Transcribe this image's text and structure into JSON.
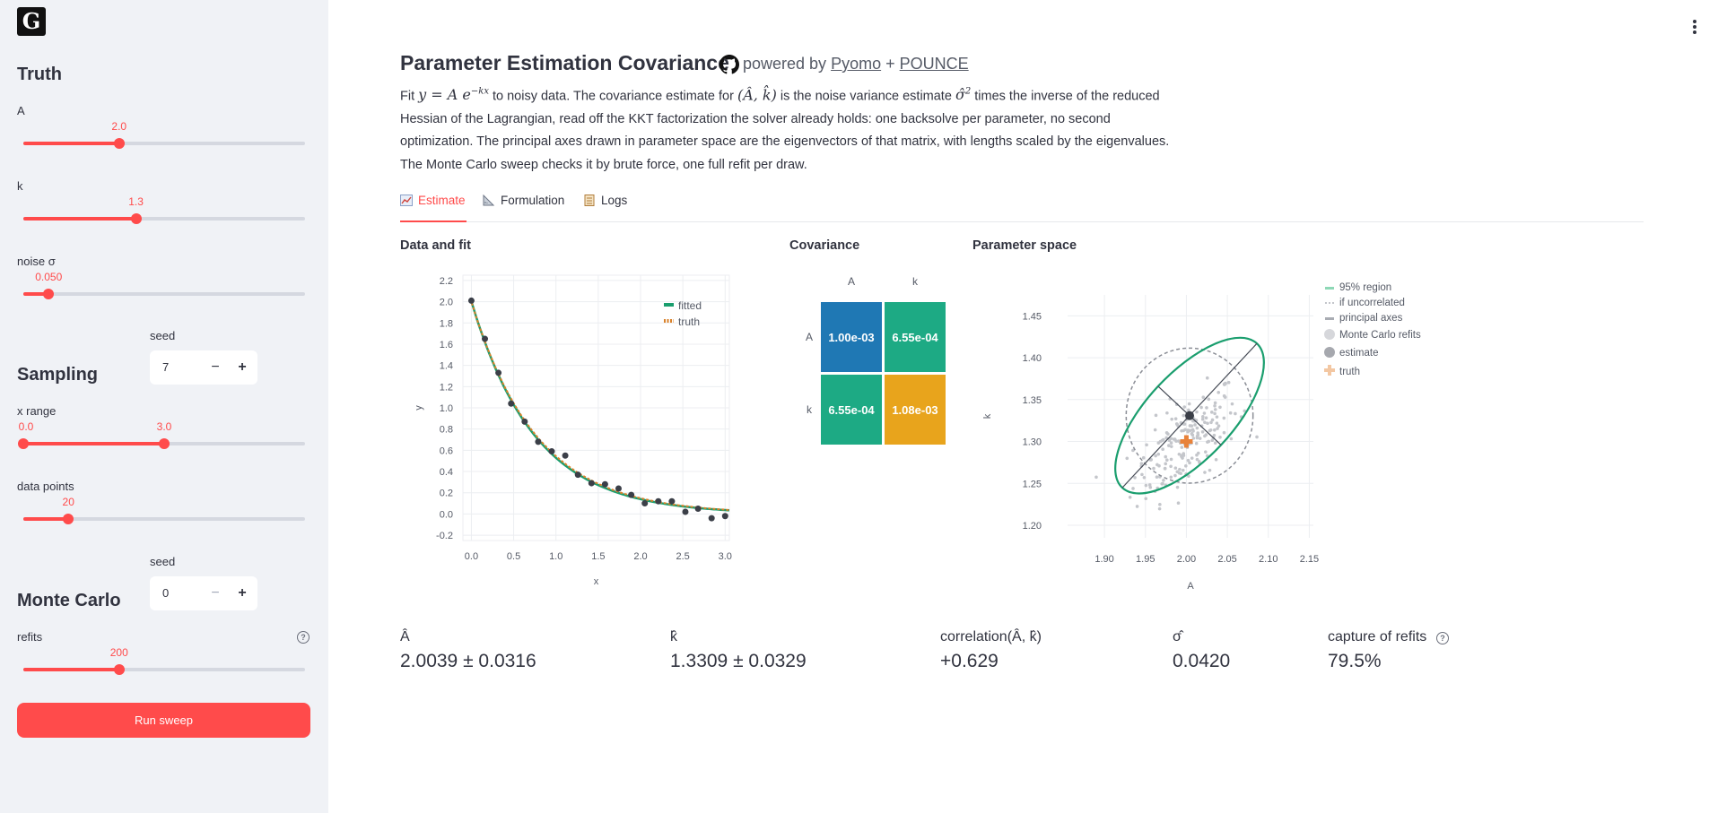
{
  "sidebar": {
    "logo_glyph": "G",
    "truth": {
      "title": "Truth",
      "A": {
        "label": "A",
        "value": "2.0",
        "fraction": 0.34
      },
      "k": {
        "label": "k",
        "value": "1.3",
        "fraction": 0.4
      },
      "noise": {
        "label": "noise σ",
        "value": "0.050",
        "fraction": 0.09
      }
    },
    "seed1": {
      "label": "seed",
      "value": "7"
    },
    "sampling": {
      "title": "Sampling",
      "xrange": {
        "label": "x range",
        "low": "0.0",
        "high": "3.0",
        "low_fraction": 0.0,
        "high_fraction": 0.5
      },
      "points": {
        "label": "data points",
        "value": "20",
        "fraction": 0.16
      }
    },
    "seed2": {
      "label": "seed",
      "value": "0"
    },
    "montecarlo": {
      "title": "Monte Carlo",
      "refits": {
        "label": "refits",
        "value": "200",
        "fraction": 0.34
      }
    },
    "stepper_minus": "−",
    "stepper_plus": "+",
    "help_glyph": "?",
    "run_button": "Run sweep"
  },
  "header": {
    "title": "Parameter Estimation Covariance",
    "powered_by": "powered by",
    "link1": "Pyomo",
    "plus": "+",
    "link2": "POUNCE",
    "desc_line1_a": "Fit ",
    "desc_formula": "y = A e^{-kx}",
    "desc_line1_b": " to noisy data. The covariance estimate for ",
    "desc_params": "(Â, k̂)",
    "desc_line1_c": " is the noise variance estimate ",
    "desc_sigma": "σ̂²",
    "desc_line1_d": " times the inverse of the",
    "desc_rest": "reduced Hessian of the Lagrangian, read off the KKT factorization the solver already holds: one backsolve per parameter, no second optimization. The principal axes drawn in parameter space are the eigenvectors of that matrix, with lengths scaled by the eigenvalues. The Monte Carlo sweep checks it by brute force, one full refit per draw."
  },
  "tabs": [
    {
      "label": "Estimate",
      "icon": "chart-icon",
      "active": true
    },
    {
      "label": "Formulation",
      "icon": "ruler-icon",
      "active": false
    },
    {
      "label": "Logs",
      "icon": "notebook-icon",
      "active": false
    }
  ],
  "sections": {
    "fit": "Data and fit",
    "cov": "Covariance",
    "param": "Parameter space"
  },
  "chart_data": [
    {
      "type": "scatter",
      "title": "Data and fit",
      "xlabel": "x",
      "ylabel": "y",
      "xlim": [
        -0.1,
        3.05
      ],
      "ylim": [
        -0.25,
        2.25
      ],
      "xticks": [
        0.0,
        0.5,
        1.0,
        1.5,
        2.0,
        2.5,
        3.0
      ],
      "yticks": [
        -0.2,
        0.0,
        0.2,
        0.4,
        0.6,
        0.8,
        1.0,
        1.2,
        1.4,
        1.6,
        1.8,
        2.0,
        2.2
      ],
      "legend": [
        "fitted",
        "truth"
      ],
      "series": [
        {
          "name": "data",
          "x": [
            0.0,
            0.16,
            0.32,
            0.47,
            0.63,
            0.79,
            0.95,
            1.11,
            1.26,
            1.42,
            1.58,
            1.74,
            1.89,
            2.05,
            2.21,
            2.37,
            2.53,
            2.68,
            2.84,
            3.0
          ],
          "y": [
            2.01,
            1.65,
            1.33,
            1.04,
            0.87,
            0.68,
            0.59,
            0.55,
            0.37,
            0.29,
            0.28,
            0.24,
            0.18,
            0.1,
            0.12,
            0.12,
            0.02,
            0.05,
            -0.04,
            -0.02
          ]
        },
        {
          "name": "fitted",
          "A": 2.0039,
          "k": 1.3309,
          "color": "#1a9e6e"
        },
        {
          "name": "truth",
          "A": 2.0,
          "k": 1.3,
          "color": "#d9822b"
        }
      ]
    },
    {
      "type": "heatmap",
      "title": "Covariance",
      "columns": [
        "A",
        "k"
      ],
      "rows": [
        "A",
        "k"
      ],
      "cells": [
        [
          {
            "label": "1.00e-03",
            "color": "#1f78b4"
          },
          {
            "label": "6.55e-04",
            "color": "#1daa84"
          }
        ],
        [
          {
            "label": "6.55e-04",
            "color": "#1daa84"
          },
          {
            "label": "1.08e-03",
            "color": "#e8a41c"
          }
        ]
      ]
    },
    {
      "type": "scatter",
      "title": "Parameter space",
      "xlabel": "A",
      "ylabel": "k",
      "xlim": [
        1.855,
        2.155
      ],
      "ylim": [
        1.185,
        1.475
      ],
      "xticks": [
        1.9,
        1.95,
        2.0,
        2.05,
        2.1,
        2.15
      ],
      "yticks": [
        1.2,
        1.25,
        1.3,
        1.35,
        1.4,
        1.45
      ],
      "legend": [
        "95% region",
        "if uncorrelated",
        "principal axes",
        "Monte Carlo refits",
        "estimate",
        "truth"
      ],
      "estimate": [
        2.0039,
        1.3309
      ],
      "truth": [
        2.0,
        1.3
      ],
      "region_color": "#1a9e6e",
      "truth_color": "#e8823a"
    }
  ],
  "metrics": [
    {
      "label": "Â",
      "value": "2.0039 ± 0.0316"
    },
    {
      "label": "k̂",
      "value": "1.3309 ± 0.0329"
    },
    {
      "label": "correlation(Â, k̂)",
      "value": "+0.629"
    },
    {
      "label": "σ̂",
      "value": "0.0420"
    },
    {
      "label": "capture of refits",
      "value": "79.5%"
    }
  ]
}
